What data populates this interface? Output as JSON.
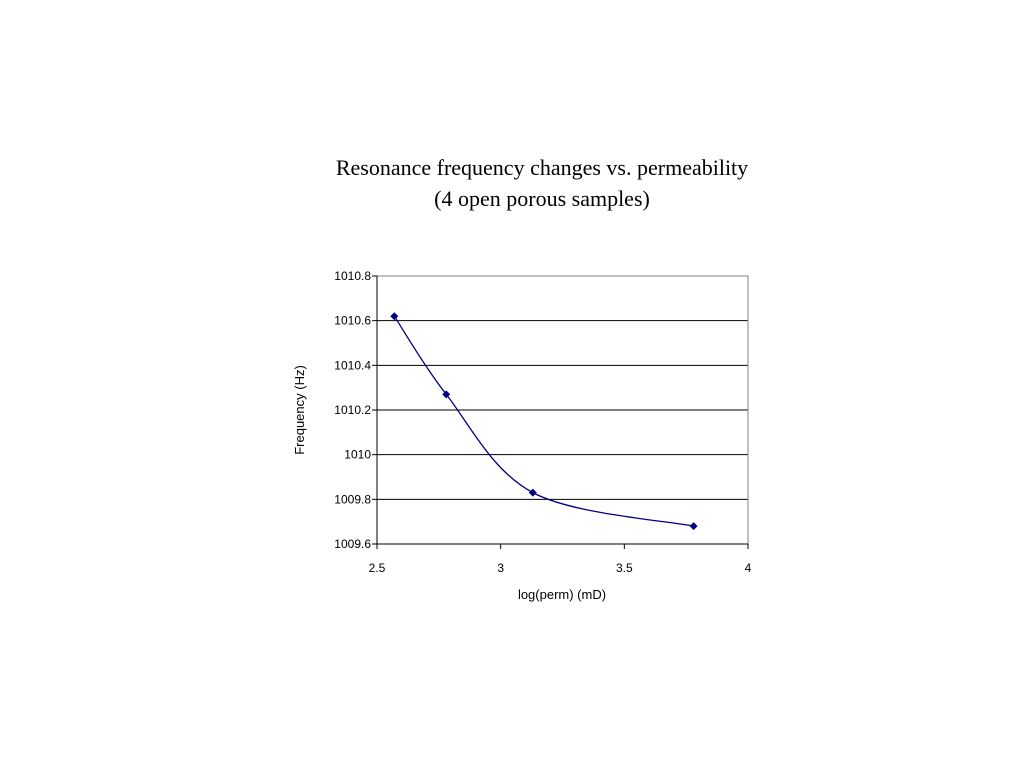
{
  "chart_data": {
    "type": "line",
    "title_line1": "Resonance frequency changes vs. permeability",
    "title_line2": "(4 open porous samples)",
    "xlabel": "log(perm) (mD)",
    "ylabel": "Frequency (Hz)",
    "xlim": [
      2.5,
      4
    ],
    "ylim": [
      1009.6,
      1010.8
    ],
    "x_ticks": [
      "2.5",
      "3",
      "3.5",
      "4"
    ],
    "y_ticks": [
      "1009.6",
      "1009.8",
      "1010",
      "1010.2",
      "1010.4",
      "1010.6",
      "1010.8"
    ],
    "grid": "horizontal",
    "legend": "none",
    "smoothed": true,
    "series": [
      {
        "color": "#000080",
        "marker": "diamond",
        "x": [
          2.57,
          2.78,
          3.13,
          3.78
        ],
        "y": [
          1010.62,
          1010.27,
          1009.83,
          1009.68
        ]
      }
    ]
  }
}
